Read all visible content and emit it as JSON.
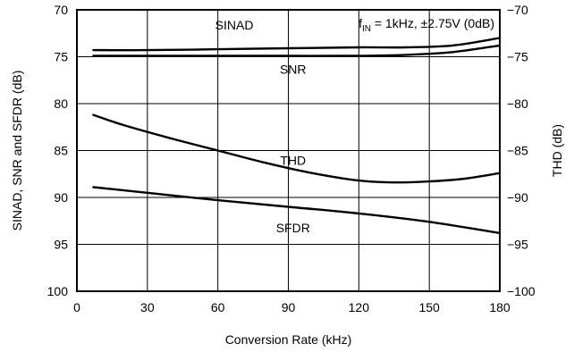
{
  "chart_data": {
    "type": "line",
    "title": "",
    "xlabel": "Conversion Rate (kHz)",
    "ylabel_left": "SINAD, SNR and SFDR (dB)",
    "ylabel_right": "THD (dB)",
    "xlim": [
      0,
      180
    ],
    "ylim_left": [
      70,
      100
    ],
    "ylim_right": [
      -70,
      -100
    ],
    "x_ticks": [
      0,
      30,
      60,
      90,
      120,
      150,
      180
    ],
    "x_tick_labels": [
      "0",
      "30",
      "60",
      "90",
      "120",
      "150",
      "180"
    ],
    "y_left_ticks": [
      70,
      75,
      80,
      85,
      90,
      95,
      100
    ],
    "y_left_tick_labels": [
      "70",
      "75",
      "80",
      "85",
      "90",
      "95",
      "100"
    ],
    "y_right_ticks": [
      -70,
      -75,
      -80,
      -85,
      -90,
      -95,
      -100
    ],
    "y_right_tick_labels": [
      "−70",
      "−75",
      "−80",
      "−85",
      "−90",
      "−95",
      "−100"
    ],
    "grid": true,
    "annotation": {
      "prefix": "f",
      "subscript": "IN",
      "suffix": " = 1kHz, ±2.75V (0dB)"
    },
    "series": [
      {
        "name": "SINAD",
        "axis": "left",
        "x": [
          7,
          30,
          60,
          90,
          120,
          140,
          160,
          180
        ],
        "y": [
          74.3,
          74.3,
          74.2,
          74.1,
          74.0,
          74.0,
          73.8,
          73.0
        ]
      },
      {
        "name": "SNR",
        "axis": "left",
        "x": [
          7,
          30,
          60,
          90,
          120,
          140,
          160,
          180
        ],
        "y": [
          74.9,
          74.9,
          74.9,
          74.9,
          74.9,
          74.8,
          74.5,
          73.8
        ]
      },
      {
        "name": "THD",
        "axis": "right",
        "x": [
          7,
          20,
          40,
          60,
          80,
          100,
          120,
          135,
          150,
          165,
          180
        ],
        "y": [
          -81.2,
          -82.3,
          -83.7,
          -85.0,
          -86.3,
          -87.4,
          -88.2,
          -88.4,
          -88.3,
          -88.0,
          -87.4
        ]
      },
      {
        "name": "SFDR",
        "axis": "left",
        "x": [
          7,
          30,
          60,
          90,
          120,
          150,
          180
        ],
        "y": [
          88.9,
          89.5,
          90.3,
          91.0,
          91.7,
          92.6,
          93.8
        ]
      }
    ],
    "series_labels": [
      {
        "name": "SINAD",
        "x": 67,
        "y": 72.1
      },
      {
        "name": "SNR",
        "x": 92,
        "y": 76.8
      },
      {
        "name": "THD",
        "x": 92,
        "y": 86.5
      },
      {
        "name": "SFDR",
        "x": 92,
        "y": 93.7
      }
    ]
  }
}
